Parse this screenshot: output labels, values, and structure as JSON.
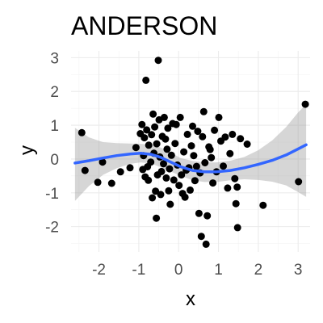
{
  "chart_data": {
    "type": "scatter",
    "title": "ANDERSON",
    "xlabel": "x",
    "ylabel": "y",
    "xlim": [
      -2.7,
      3.3
    ],
    "ylim": [
      -2.75,
      3.2
    ],
    "x_ticks": [
      -2,
      -1,
      0,
      1,
      2,
      3
    ],
    "y_ticks": [
      -2,
      -1,
      0,
      1,
      2,
      3
    ],
    "grid": true,
    "point_color": "#000000",
    "smooth_color": "#3366ff",
    "band_color": "#999999",
    "points": [
      [
        -2.43,
        0.78
      ],
      [
        -2.35,
        -0.34
      ],
      [
        -2.03,
        -0.69
      ],
      [
        -1.91,
        -0.09
      ],
      [
        -1.68,
        -0.72
      ],
      [
        -1.46,
        -0.38
      ],
      [
        -1.22,
        -0.26
      ],
      [
        -1.07,
        0.34
      ],
      [
        -0.96,
        0.75
      ],
      [
        -0.92,
        1.02
      ],
      [
        -0.9,
        -0.31
      ],
      [
        -0.88,
        0.1
      ],
      [
        -0.86,
        0.63
      ],
      [
        -0.84,
        -0.53
      ],
      [
        -0.82,
        2.33
      ],
      [
        -0.8,
        0.86
      ],
      [
        -0.78,
        -0.23
      ],
      [
        -0.76,
        -0.63
      ],
      [
        -0.75,
        0.41
      ],
      [
        -0.7,
        -0.09
      ],
      [
        -0.68,
        0.72
      ],
      [
        -0.66,
        -1.15
      ],
      [
        -0.64,
        1.33
      ],
      [
        -0.62,
        0.17
      ],
      [
        -0.6,
        0.95
      ],
      [
        -0.58,
        -0.95
      ],
      [
        -0.56,
        -1.75
      ],
      [
        -0.55,
        0.45
      ],
      [
        -0.53,
        -0.47
      ],
      [
        -0.51,
        2.92
      ],
      [
        -0.49,
        1.16
      ],
      [
        -0.47,
        0.06
      ],
      [
        -0.45,
        -1.05
      ],
      [
        -0.43,
        -0.37
      ],
      [
        -0.41,
        0.67
      ],
      [
        -0.38,
        -0.14
      ],
      [
        -0.36,
        1.23
      ],
      [
        -0.33,
        0.59
      ],
      [
        -0.31,
        -0.56
      ],
      [
        -0.29,
        0.29
      ],
      [
        -0.27,
        0.91
      ],
      [
        -0.25,
        -0.94
      ],
      [
        -0.23,
        -0.29
      ],
      [
        -0.21,
        -1.34
      ],
      [
        -0.18,
        0.11
      ],
      [
        -0.15,
        1.05
      ],
      [
        -0.12,
        -0.62
      ],
      [
        -0.09,
        0.46
      ],
      [
        -0.06,
        1.02
      ],
      [
        -0.03,
        -0.18
      ],
      [
        0.01,
        -0.78
      ],
      [
        0.04,
        1.23
      ],
      [
        0.07,
        -0.47
      ],
      [
        0.1,
        -1.02
      ],
      [
        0.13,
        0.21
      ],
      [
        0.16,
        -1.13
      ],
      [
        0.19,
        -0.33
      ],
      [
        0.22,
        0.73
      ],
      [
        0.26,
        -0.26
      ],
      [
        0.29,
        -0.92
      ],
      [
        0.32,
        0.39
      ],
      [
        0.35,
        0.97
      ],
      [
        0.38,
        0.1
      ],
      [
        0.41,
        -0.64
      ],
      [
        0.45,
        -0.22
      ],
      [
        0.48,
        0.82
      ],
      [
        0.51,
        -1.61
      ],
      [
        0.54,
        -0.41
      ],
      [
        0.57,
        -2.29
      ],
      [
        0.6,
        0.66
      ],
      [
        0.63,
        1.4
      ],
      [
        0.66,
        -0.11
      ],
      [
        0.69,
        -2.52
      ],
      [
        0.72,
        -1.68
      ],
      [
        0.76,
        0.36
      ],
      [
        0.79,
        0.28
      ],
      [
        0.82,
        0.04
      ],
      [
        0.86,
        -0.71
      ],
      [
        0.9,
        0.85
      ],
      [
        0.95,
        -0.38
      ],
      [
        1.01,
        1.23
      ],
      [
        1.06,
        0.53
      ],
      [
        1.12,
        -0.21
      ],
      [
        1.17,
        0.65
      ],
      [
        1.23,
        -0.86
      ],
      [
        1.29,
        0.16
      ],
      [
        1.35,
        0.73
      ],
      [
        1.41,
        -0.58
      ],
      [
        1.44,
        -1.32
      ],
      [
        1.47,
        -0.83
      ],
      [
        1.48,
        -2.03
      ],
      [
        1.55,
        0.6
      ],
      [
        1.72,
        0.44
      ],
      [
        2.12,
        -1.37
      ],
      [
        3.01,
        -0.67
      ],
      [
        3.18,
        1.62
      ]
    ],
    "smooth": [
      [
        -2.6,
        -0.12
      ],
      [
        -2.25,
        -0.05
      ],
      [
        -1.9,
        0.03
      ],
      [
        -1.55,
        0.1
      ],
      [
        -1.2,
        0.15
      ],
      [
        -0.95,
        0.17
      ],
      [
        -0.7,
        0.14
      ],
      [
        -0.45,
        0.05
      ],
      [
        -0.2,
        -0.09
      ],
      [
        0.05,
        -0.23
      ],
      [
        0.35,
        -0.34
      ],
      [
        0.65,
        -0.38
      ],
      [
        0.95,
        -0.38
      ],
      [
        1.3,
        -0.34
      ],
      [
        1.65,
        -0.26
      ],
      [
        2.0,
        -0.16
      ],
      [
        2.35,
        -0.04
      ],
      [
        2.7,
        0.12
      ],
      [
        3.0,
        0.3
      ],
      [
        3.2,
        0.42
      ]
    ],
    "band_upper": [
      [
        -2.6,
        0.92
      ],
      [
        -2.25,
        0.64
      ],
      [
        -1.9,
        0.5
      ],
      [
        -1.55,
        0.47
      ],
      [
        -1.2,
        0.46
      ],
      [
        -0.95,
        0.45
      ],
      [
        -0.7,
        0.42
      ],
      [
        -0.45,
        0.34
      ],
      [
        -0.2,
        0.19
      ],
      [
        0.05,
        0.03
      ],
      [
        0.35,
        -0.06
      ],
      [
        0.65,
        -0.1
      ],
      [
        0.95,
        -0.1
      ],
      [
        1.3,
        -0.05
      ],
      [
        1.65,
        0.06
      ],
      [
        2.0,
        0.26
      ],
      [
        2.35,
        0.55
      ],
      [
        2.7,
        0.95
      ],
      [
        3.0,
        1.38
      ],
      [
        3.2,
        1.62
      ]
    ],
    "band_lower": [
      [
        -2.6,
        -1.24
      ],
      [
        -2.25,
        -0.8
      ],
      [
        -1.9,
        -0.47
      ],
      [
        -1.55,
        -0.27
      ],
      [
        -1.2,
        -0.14
      ],
      [
        -0.95,
        -0.1
      ],
      [
        -0.7,
        -0.13
      ],
      [
        -0.45,
        -0.24
      ],
      [
        -0.2,
        -0.37
      ],
      [
        0.05,
        -0.5
      ],
      [
        0.35,
        -0.63
      ],
      [
        0.65,
        -0.68
      ],
      [
        0.95,
        -0.68
      ],
      [
        1.3,
        -0.63
      ],
      [
        1.65,
        -0.6
      ],
      [
        2.0,
        -0.62
      ],
      [
        2.35,
        -0.67
      ],
      [
        2.7,
        -0.78
      ],
      [
        3.0,
        -0.98
      ],
      [
        3.2,
        -1.12
      ]
    ]
  }
}
